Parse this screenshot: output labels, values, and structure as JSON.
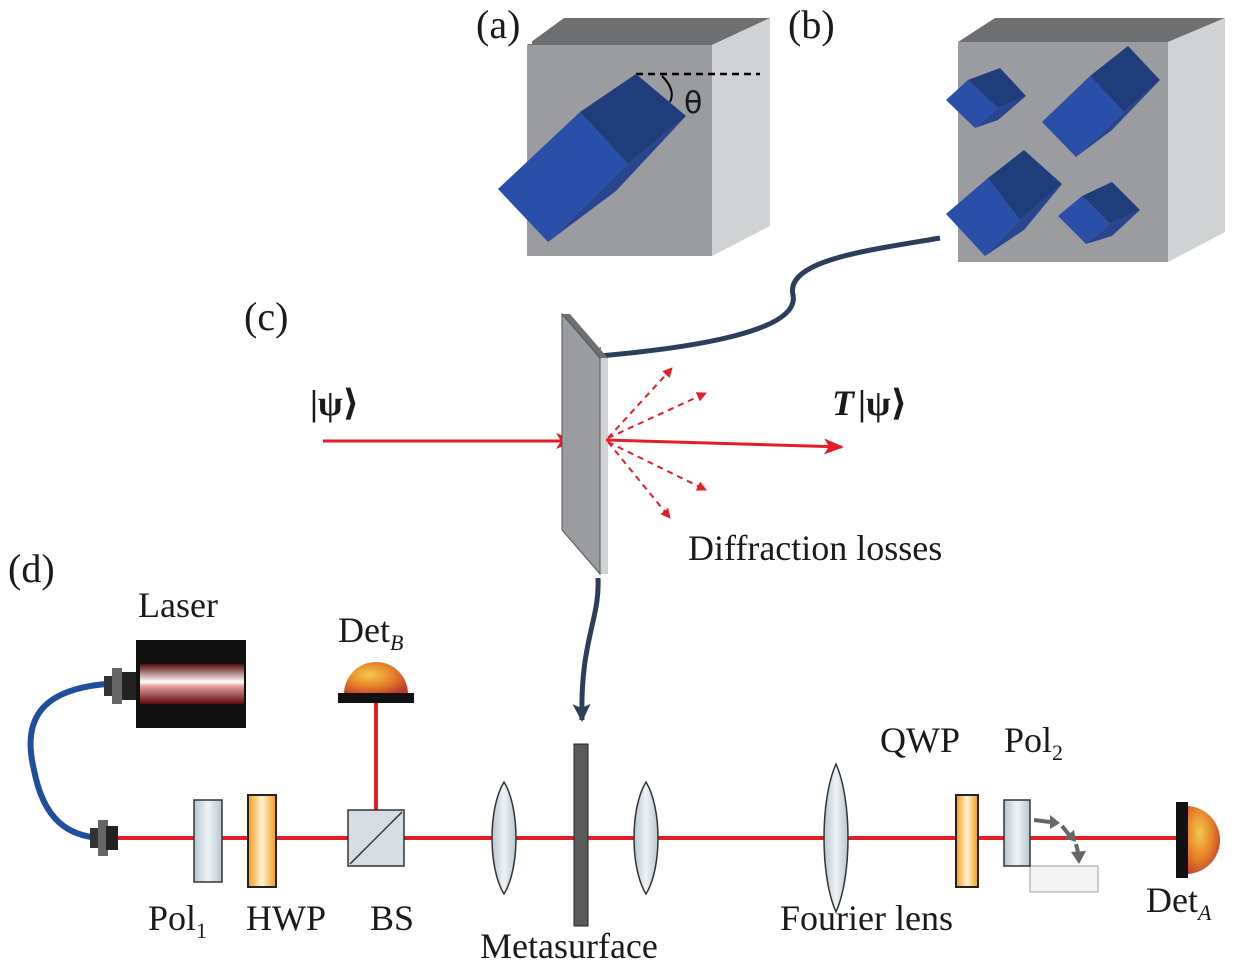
{
  "panels": {
    "a": "(a)",
    "b": "(b)",
    "c": "(c)",
    "d": "(d)"
  },
  "angle_symbol": "θ",
  "state_in": "|ψ⟩",
  "state_out_T": "T",
  "state_out_psi": "|ψ⟩",
  "diffraction_label": "Diffraction losses",
  "components": {
    "laser": "Laser",
    "det_b": "Det",
    "det_b_sub": "B",
    "det_a": "Det",
    "det_a_sub": "A",
    "pol1": "Pol",
    "pol1_sub": "1",
    "hwp": "HWP",
    "bs": "BS",
    "metasurface": "Metasurface",
    "fourier_lens": "Fourier lens",
    "qwp": "QWP",
    "pol2": "Pol",
    "pol2_sub": "2"
  },
  "colors": {
    "beam": "#e41e26",
    "connector": "#2c3e5a",
    "fiber": "#1f4e9c",
    "waveplate": "#f39c12",
    "cube_front": "#9a9c9f",
    "cube_top": "#6e6f71",
    "cube_side": "#d0d2d4",
    "pillar": "#2a4fa8"
  }
}
